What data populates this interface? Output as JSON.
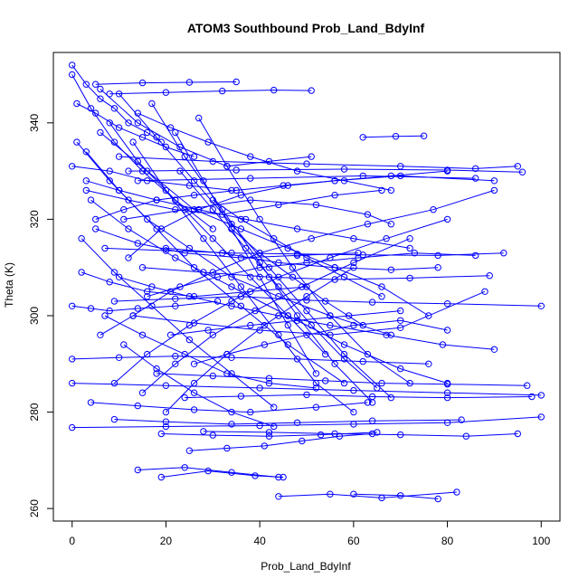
{
  "chart_data": {
    "type": "line",
    "title": "ATOM3 Southbound Prob_Land_BdyInf",
    "xlabel": "Prob_Land_BdyInf",
    "ylabel": "Theta (K)",
    "xlim": [
      -4,
      104
    ],
    "ylim": [
      257.4,
      354.6
    ],
    "x_ticks": [
      0,
      20,
      40,
      60,
      80,
      100
    ],
    "y_ticks": [
      260,
      280,
      300,
      320,
      340
    ],
    "grid": false,
    "legend": "none",
    "marker": "open-circle",
    "series_color": "#0000ff",
    "series": [
      {
        "x": [
          0,
          3,
          6,
          9,
          12,
          16,
          19
        ],
        "y": [
          352,
          348,
          345,
          343,
          340,
          338,
          336
        ]
      },
      {
        "x": [
          1,
          5,
          10,
          15,
          20,
          26
        ],
        "y": [
          344,
          342,
          339,
          337,
          335,
          333
        ]
      },
      {
        "x": [
          5,
          15,
          25,
          35
        ],
        "y": [
          348,
          348.3,
          348.4,
          348.5
        ]
      },
      {
        "x": [
          8,
          20,
          32,
          43,
          51
        ],
        "y": [
          346,
          346.3,
          346.6,
          346.8,
          346.7
        ]
      },
      {
        "x": [
          0,
          8,
          16,
          25,
          34
        ],
        "y": [
          331,
          330,
          328,
          327,
          326
        ]
      },
      {
        "x": [
          0,
          4,
          9,
          15,
          22,
          30
        ],
        "y": [
          350,
          343,
          336,
          330,
          324,
          318
        ]
      },
      {
        "x": [
          6,
          14,
          23,
          33,
          42,
          51
        ],
        "y": [
          347,
          340,
          335,
          331,
          332,
          333
        ]
      },
      {
        "x": [
          62,
          69,
          75
        ],
        "y": [
          337,
          337.2,
          337.3
        ]
      },
      {
        "x": [
          10,
          30,
          50,
          70,
          86,
          95
        ],
        "y": [
          333,
          332,
          331.5,
          331,
          330.5,
          331
        ]
      },
      {
        "x": [
          12,
          35,
          58,
          80,
          96
        ],
        "y": [
          330,
          330.2,
          330.4,
          330.2,
          329.8
        ]
      },
      {
        "x": [
          14,
          38,
          62,
          86
        ],
        "y": [
          328,
          328.5,
          329,
          328.5
        ]
      },
      {
        "x": [
          3,
          12,
          22,
          32,
          44,
          56,
          66
        ],
        "y": [
          326,
          324,
          322,
          321,
          323,
          325,
          326
        ]
      },
      {
        "x": [
          11,
          24,
          38,
          52,
          63,
          68
        ],
        "y": [
          320,
          322,
          324,
          323,
          321,
          319
        ]
      },
      {
        "x": [
          5,
          14,
          24,
          36,
          48,
          61
        ],
        "y": [
          318,
          315,
          313,
          312,
          312.5,
          313
        ]
      },
      {
        "x": [
          7,
          20,
          34,
          48,
          62,
          78,
          92
        ],
        "y": [
          314,
          313.5,
          313,
          312.8,
          312.6,
          312.5,
          313
        ]
      },
      {
        "x": [
          9,
          22,
          36,
          50,
          64,
          80,
          100
        ],
        "y": [
          303,
          303.5,
          304,
          303.2,
          302.8,
          302.5,
          302
        ]
      },
      {
        "x": [
          0,
          4,
          8,
          14,
          22,
          31
        ],
        "y": [
          302,
          301.5,
          301,
          301.5,
          302,
          303
        ]
      },
      {
        "x": [
          2,
          8,
          16,
          26,
          38,
          50
        ],
        "y": [
          309,
          307,
          305,
          304,
          305,
          306
        ]
      },
      {
        "x": [
          13,
          26,
          40,
          55,
          70,
          88
        ],
        "y": [
          300,
          298.5,
          297,
          296,
          297.5,
          305
        ]
      },
      {
        "x": [
          15,
          28,
          42,
          56,
          72,
          89
        ],
        "y": [
          310,
          309,
          308,
          307.5,
          307.8,
          308.3
        ]
      },
      {
        "x": [
          20,
          32,
          44,
          56,
          68,
          78
        ],
        "y": [
          314,
          313,
          311,
          310,
          309.5,
          310
        ]
      },
      {
        "x": [
          0,
          10,
          22,
          34,
          48,
          62,
          76
        ],
        "y": [
          291,
          291.3,
          291.6,
          291.3,
          291,
          290.5,
          290
        ]
      },
      {
        "x": [
          18,
          30,
          42,
          54,
          66,
          80,
          97
        ],
        "y": [
          288,
          287.5,
          287,
          286.5,
          286,
          285.8,
          285.5
        ]
      },
      {
        "x": [
          0,
          20,
          40,
          60,
          80,
          100
        ],
        "y": [
          286,
          285.5,
          285,
          284.5,
          284,
          283.5
        ]
      },
      {
        "x": [
          24,
          36,
          50,
          64,
          80,
          98
        ],
        "y": [
          283,
          283.3,
          283.6,
          283.2,
          283,
          283.2
        ]
      },
      {
        "x": [
          4,
          14,
          26,
          38,
          52,
          63
        ],
        "y": [
          282,
          281.3,
          280.5,
          280,
          281,
          282
        ]
      },
      {
        "x": [
          9,
          20,
          34,
          48,
          64,
          83
        ],
        "y": [
          278.5,
          278,
          277.5,
          277.8,
          278.2,
          278.4
        ]
      },
      {
        "x": [
          0,
          20,
          40,
          60,
          80,
          100
        ],
        "y": [
          276.8,
          277,
          277.2,
          277.5,
          277.8,
          279
        ]
      },
      {
        "x": [
          28,
          42,
          56,
          70,
          84,
          95
        ],
        "y": [
          276,
          275.8,
          275.5,
          275.3,
          275,
          275.5
        ]
      },
      {
        "x": [
          19,
          30,
          42,
          53,
          65
        ],
        "y": [
          275.5,
          275.2,
          275,
          275.3,
          275.8
        ]
      },
      {
        "x": [
          25,
          33,
          41,
          49,
          57,
          64
        ],
        "y": [
          272,
          272.5,
          273,
          274,
          275,
          275.5
        ]
      },
      {
        "x": [
          14,
          24,
          34,
          44
        ],
        "y": [
          268,
          268.5,
          267.5,
          266.5
        ]
      },
      {
        "x": [
          19,
          29,
          39,
          45
        ],
        "y": [
          266.5,
          267.8,
          266.8,
          266.5
        ]
      },
      {
        "x": [
          44,
          55,
          66,
          82
        ],
        "y": [
          262.5,
          263,
          262.2,
          263.4
        ]
      },
      {
        "x": [
          60,
          70,
          78
        ],
        "y": [
          263,
          262.7,
          262
        ]
      },
      {
        "x": [
          6,
          16,
          26,
          36,
          46,
          56,
          66,
          76
        ],
        "y": [
          338,
          330,
          322,
          318,
          314,
          310,
          306,
          300
        ]
      },
      {
        "x": [
          4,
          12,
          22,
          34,
          46,
          58,
          70,
          80
        ],
        "y": [
          324,
          318,
          312,
          306,
          300,
          294,
          289,
          286
        ]
      },
      {
        "x": [
          8,
          14,
          22,
          30,
          38,
          46,
          54
        ],
        "y": [
          340,
          332,
          324,
          316,
          308,
          300,
          292
        ]
      },
      {
        "x": [
          10,
          18,
          26,
          34,
          42,
          50,
          58,
          68
        ],
        "y": [
          346,
          337,
          328,
          319,
          310,
          301,
          292,
          283
        ]
      },
      {
        "x": [
          3,
          10,
          18,
          26,
          36,
          46,
          58
        ],
        "y": [
          334,
          326,
          318,
          310,
          302,
          294,
          286
        ]
      },
      {
        "x": [
          2,
          9,
          17,
          25,
          34,
          43
        ],
        "y": [
          316,
          309,
          302,
          295,
          288,
          281
        ]
      },
      {
        "x": [
          13,
          20,
          28,
          36,
          44,
          52,
          60
        ],
        "y": [
          336,
          326,
          316,
          306,
          296,
          286,
          280
        ]
      },
      {
        "x": [
          17,
          24,
          32,
          40,
          48,
          56,
          64
        ],
        "y": [
          344,
          333,
          322,
          311,
          300,
          290,
          282
        ]
      },
      {
        "x": [
          22,
          28,
          34,
          40,
          46,
          52
        ],
        "y": [
          338,
          328,
          318,
          308,
          298,
          288
        ]
      },
      {
        "x": [
          7,
          15,
          24,
          33,
          42,
          52
        ],
        "y": [
          300,
          296,
          292,
          288,
          286,
          285
        ]
      },
      {
        "x": [
          11,
          18,
          26,
          34,
          43
        ],
        "y": [
          294,
          289,
          284,
          280,
          277
        ]
      },
      {
        "x": [
          1,
          8,
          16,
          25,
          34,
          44,
          55,
          68
        ],
        "y": [
          336,
          328,
          320,
          314,
          308,
          304,
          300,
          296
        ]
      },
      {
        "x": [
          23,
          30,
          37,
          44,
          51,
          58,
          65
        ],
        "y": [
          330,
          322,
          314,
          306,
          298,
          291,
          285
        ]
      },
      {
        "x": [
          27,
          33,
          40,
          47,
          55,
          63,
          72
        ],
        "y": [
          341,
          331,
          320,
          310,
          300,
          292,
          286
        ]
      },
      {
        "x": [
          12,
          19,
          27,
          36,
          46,
          56,
          68,
          80
        ],
        "y": [
          312,
          318,
          322,
          325,
          327,
          328,
          329,
          330
        ]
      },
      {
        "x": [
          6,
          13,
          21,
          30,
          40,
          51,
          63,
          77,
          90
        ],
        "y": [
          296,
          300,
          305,
          309,
          313,
          316,
          319,
          322,
          326
        ]
      },
      {
        "x": [
          9,
          16,
          25,
          34,
          44,
          55,
          67,
          80
        ],
        "y": [
          286,
          292,
          298,
          303,
          308,
          312,
          316,
          320
        ]
      },
      {
        "x": [
          15,
          22,
          30,
          39,
          49,
          60,
          72
        ],
        "y": [
          284,
          290,
          296,
          301,
          306,
          311,
          316
        ]
      },
      {
        "x": [
          20,
          26,
          33,
          41,
          50,
          60
        ],
        "y": [
          280,
          286,
          292,
          298,
          304,
          310
        ]
      },
      {
        "x": [
          5,
          11,
          18,
          26,
          35,
          45,
          56,
          70,
          90
        ],
        "y": [
          320,
          322,
          324,
          325,
          326,
          327,
          328,
          329,
          328
        ]
      },
      {
        "x": [
          3,
          10,
          18,
          27,
          37,
          48,
          60,
          72
        ],
        "y": [
          328,
          326,
          324,
          322,
          320,
          318,
          316,
          314
        ]
      },
      {
        "x": [
          16,
          23,
          31,
          40,
          50,
          61,
          73,
          86
        ],
        "y": [
          304,
          306,
          308,
          310,
          311,
          312,
          313,
          312.5
        ]
      },
      {
        "x": [
          10,
          17,
          25,
          34,
          44,
          55,
          67,
          79,
          90
        ],
        "y": [
          308,
          306,
          304,
          302,
          300,
          298,
          296,
          294,
          293
        ]
      },
      {
        "x": [
          21,
          29,
          38,
          48,
          59,
          70
        ],
        "y": [
          296,
          297,
          298,
          299,
          300,
          301
        ]
      },
      {
        "x": [
          26,
          33,
          41,
          50,
          60,
          70,
          80
        ],
        "y": [
          290,
          292,
          294,
          296,
          298,
          299,
          297
        ]
      },
      {
        "x": [
          14,
          21,
          29,
          38,
          48,
          58,
          68
        ],
        "y": [
          342,
          339,
          336,
          333,
          330,
          328,
          326
        ]
      },
      {
        "x": [
          30,
          36,
          43,
          50,
          58,
          66
        ],
        "y": [
          324,
          320,
          316,
          312,
          308,
          304
        ]
      },
      {
        "x": [
          34,
          40,
          47,
          54,
          62
        ],
        "y": [
          318,
          313,
          308,
          303,
          298
        ]
      }
    ]
  }
}
